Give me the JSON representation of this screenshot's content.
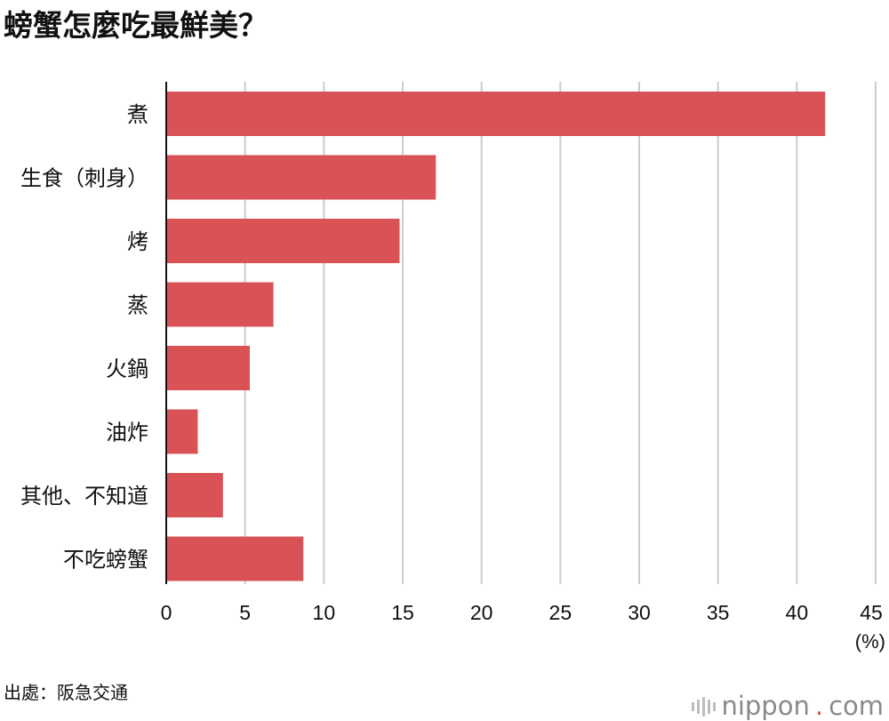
{
  "title": "螃蟹怎麼吃最鮮美？",
  "chart_data": {
    "type": "bar",
    "orientation": "horizontal",
    "title": "螃蟹怎麼吃最鮮美？",
    "categories": [
      "煮",
      "生食（刺身）",
      "烤",
      "蒸",
      "火鍋",
      "油炸",
      "其他、不知道",
      "不吃螃蟹"
    ],
    "values": [
      41.8,
      17.1,
      14.8,
      6.8,
      5.3,
      2.0,
      3.6,
      8.7
    ],
    "xlim": [
      0,
      45
    ],
    "xticks": [
      0,
      5,
      10,
      15,
      20,
      25,
      30,
      35,
      40,
      45
    ],
    "unit": "(%)",
    "grid": true,
    "bar_color": "#d95356",
    "grid_color": "#cccccc"
  },
  "source": "出處：阪急交通",
  "logo": {
    "name": "nippon",
    "dot": ".",
    "suffix": "com"
  }
}
